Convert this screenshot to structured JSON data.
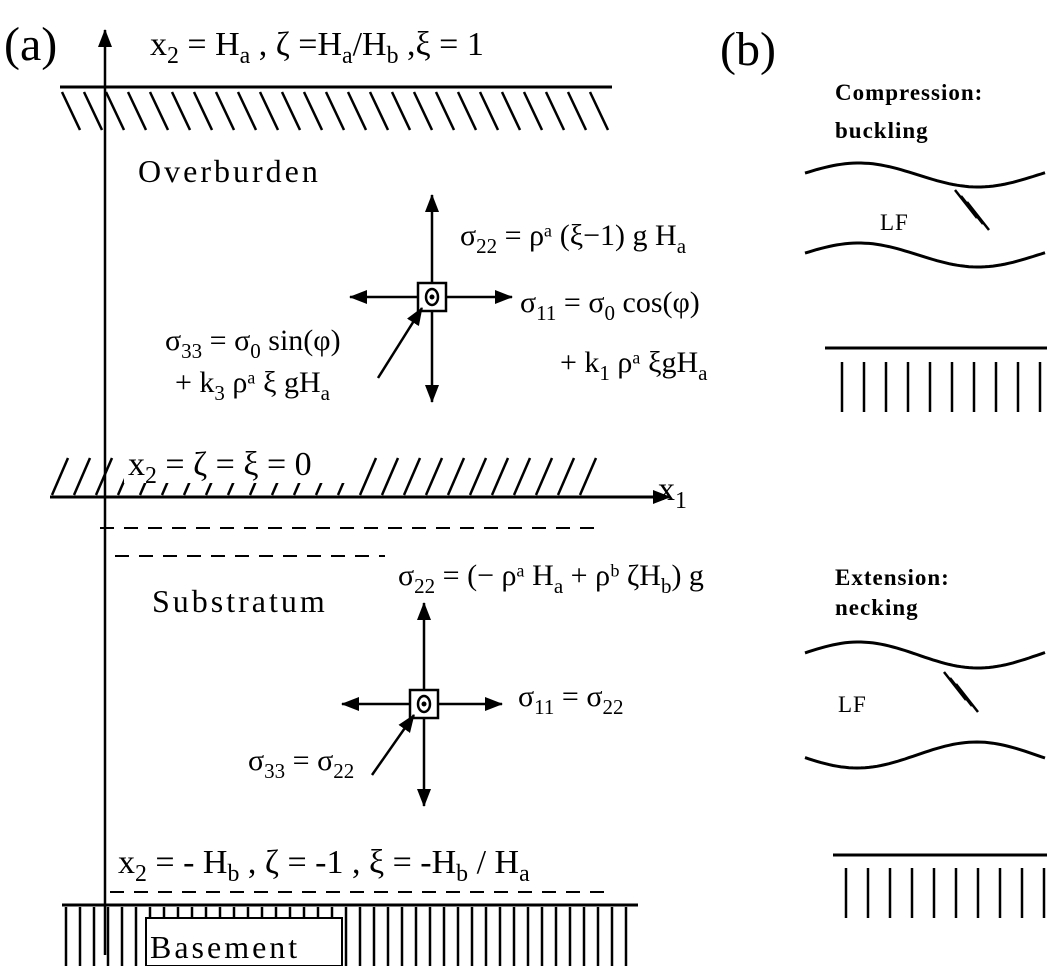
{
  "panel_a": {
    "label": "(a)",
    "top_boundary": [
      "x",
      "2",
      " = H",
      "a",
      " , ζ =H",
      "a",
      "/H",
      "b",
      " ,ξ = 1"
    ],
    "overburden": "Overburden",
    "overburden_sigma22": [
      "σ",
      "22",
      " = ρᵃ (ξ−1) g H",
      "a"
    ],
    "overburden_sigma11": [
      "σ",
      "11",
      " = σ",
      "0",
      " cos(φ)"
    ],
    "overburden_sigma11_line2": [
      "+ k",
      "1",
      " ρᵃ ξgH",
      "a"
    ],
    "overburden_sigma33": [
      "σ",
      "33",
      " = σ",
      "0",
      " sin(φ)"
    ],
    "overburden_sigma33_line2": [
      "+ k",
      "3",
      " ρᵃ ξ gH",
      "a"
    ],
    "interface": [
      "x",
      "2",
      " = ζ = ξ = 0"
    ],
    "x_axis": [
      "x",
      "1"
    ],
    "substratum_sigma22": [
      "σ",
      "22",
      " = (− ρᵃ H",
      "a",
      " + ρᵇ ζH",
      "b",
      ") g"
    ],
    "substratum": "Substratum",
    "substratum_sigma11": [
      "σ",
      "11",
      " = σ",
      "22"
    ],
    "substratum_sigma33": [
      "σ",
      "33",
      " = σ",
      "22"
    ],
    "bottom_boundary": [
      "x",
      "2",
      " = - H",
      "b",
      " , ζ = -1 , ξ = -H",
      "b",
      " / H",
      "a"
    ],
    "basement": "Basement"
  },
  "panel_b": {
    "label": "(b)",
    "compression_title": "Compression:",
    "compression_mode": "buckling",
    "compression_fault": "LF",
    "extension_title": "Extension:",
    "extension_mode": "necking",
    "extension_fault": "LF"
  }
}
